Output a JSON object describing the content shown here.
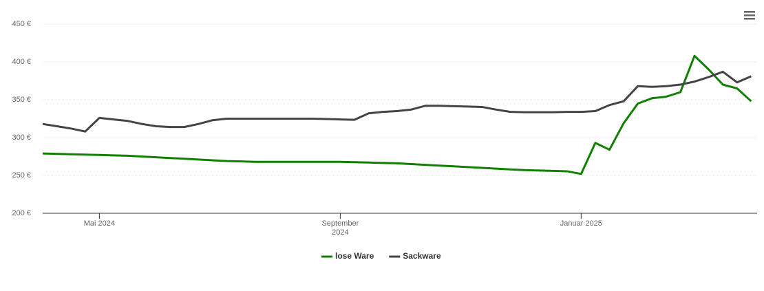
{
  "chart_data": {
    "type": "line",
    "categories": [
      null,
      null,
      null,
      null,
      "Mai 2024",
      null,
      null,
      null,
      null,
      null,
      null,
      null,
      null,
      null,
      null,
      null,
      null,
      null,
      null,
      null,
      null,
      "September 2024",
      null,
      null,
      null,
      null,
      null,
      null,
      null,
      null,
      null,
      null,
      null,
      null,
      null,
      null,
      null,
      null,
      "Januar 2025",
      null,
      null,
      null,
      null,
      null,
      null,
      null,
      null,
      null,
      null,
      null,
      null
    ],
    "series": [
      {
        "name": "lose Ware",
        "color": "#118000",
        "values": [
          279,
          278.5,
          278,
          277.5,
          277,
          276.5,
          276,
          275,
          274,
          273,
          272,
          271,
          270,
          269,
          268.5,
          268,
          268,
          268,
          268,
          268,
          268,
          268,
          267.5,
          267,
          266.5,
          266,
          265,
          264,
          263,
          262,
          261,
          260,
          259,
          258,
          257,
          256.5,
          256,
          255.5,
          252,
          293,
          284,
          319,
          345,
          352,
          354,
          360,
          408,
          390,
          370,
          365,
          348
        ]
      },
      {
        "name": "Sackware",
        "color": "#434348",
        "values": [
          318,
          315,
          312,
          308,
          326,
          324,
          322,
          318,
          315,
          314,
          314,
          318,
          323,
          325,
          325,
          325,
          325,
          325,
          325,
          325,
          324.5,
          324,
          323.5,
          332,
          334,
          335,
          337,
          342,
          342,
          341.5,
          341,
          340.5,
          337,
          334,
          333.5,
          333.5,
          333.5,
          334,
          334,
          335,
          343,
          348,
          368,
          367,
          368,
          370,
          374,
          380,
          387,
          373,
          381
        ]
      }
    ],
    "ylim": [
      200,
      450
    ],
    "yticks": [
      {
        "value": 200,
        "label": "200 €"
      },
      {
        "value": 250,
        "label": "250 €"
      },
      {
        "value": 300,
        "label": "300 €"
      },
      {
        "value": 350,
        "label": "350 €"
      },
      {
        "value": 400,
        "label": "400 €"
      },
      {
        "value": 450,
        "label": "450 €"
      }
    ],
    "grid": true,
    "legend": "bottom"
  }
}
